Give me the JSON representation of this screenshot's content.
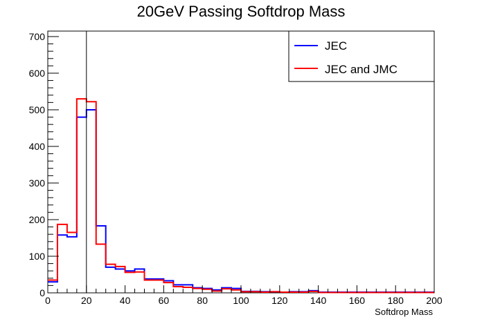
{
  "chart_data": {
    "type": "histogram",
    "title": "20GeV Passing Softdrop Mass",
    "xlabel": "Softdrop Mass",
    "ylabel": "",
    "xlim": [
      0,
      200
    ],
    "ylim": [
      0,
      715
    ],
    "bin_width": 5,
    "x_ticks": [
      0,
      20,
      40,
      60,
      80,
      100,
      120,
      140,
      160,
      180,
      200
    ],
    "y_ticks": [
      0,
      100,
      200,
      300,
      400,
      500,
      600,
      700
    ],
    "cut_line_x": 20,
    "grid": false,
    "legend_position": "top-right",
    "series": [
      {
        "name": "JEC",
        "color": "#0000ff",
        "values": [
          30,
          158,
          153,
          480,
          500,
          183,
          70,
          65,
          60,
          65,
          38,
          38,
          33,
          22,
          22,
          14,
          12,
          8,
          14,
          12,
          4,
          4,
          3,
          3,
          2,
          3,
          3,
          6,
          2,
          2,
          2,
          2,
          2,
          2,
          2,
          2,
          2,
          2,
          2,
          2
        ]
      },
      {
        "name": "JEC and JMC",
        "color": "#ff0000",
        "values": [
          35,
          187,
          165,
          530,
          522,
          133,
          78,
          72,
          56,
          57,
          35,
          35,
          28,
          17,
          15,
          12,
          10,
          5,
          11,
          8,
          3,
          3,
          2,
          3,
          2,
          2,
          2,
          4,
          1,
          1,
          1,
          1,
          1,
          1,
          1,
          1,
          1,
          1,
          1,
          1
        ]
      }
    ]
  }
}
